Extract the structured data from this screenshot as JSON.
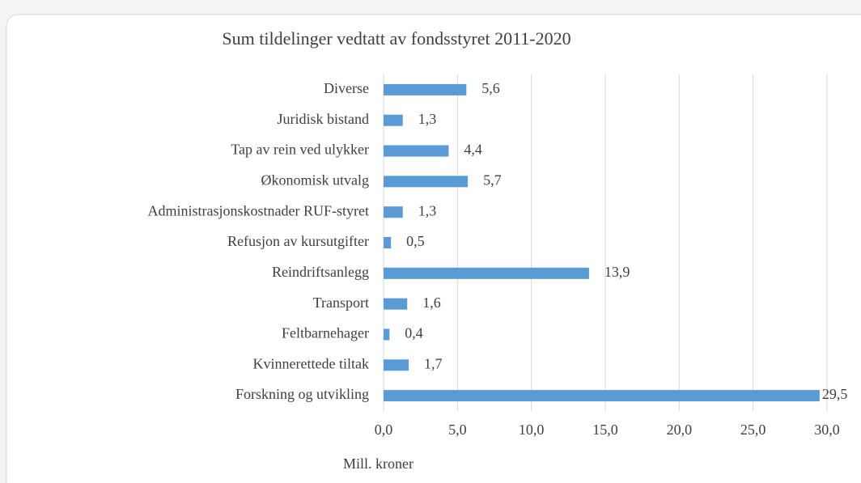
{
  "chart_data": {
    "type": "hbar",
    "title": "Sum tildelinger  vedtatt av fondsstyret 2011-2020",
    "x_label": "Mill. kroner",
    "categories": [
      "Diverse",
      "Juridisk bistand",
      "Tap av rein ved ulykker",
      "Økonomisk utvalg",
      "Administrasjonskostnader RUF-styret",
      "Refusjon av kursutgifter",
      "Reindriftsanlegg",
      "Transport",
      "Feltbarnehager",
      "Kvinnerettede tiltak",
      "Forskning og utvikling"
    ],
    "values": [
      5.6,
      1.3,
      4.4,
      5.7,
      1.3,
      0.5,
      13.9,
      1.6,
      0.4,
      1.7,
      29.5
    ],
    "value_labels": [
      "5,6",
      "1,3",
      "4,4",
      "5,7",
      "1,3",
      "0,5",
      "13,9",
      "1,6",
      "0,4",
      "1,7",
      "29,5"
    ],
    "color": "#5b9bd5",
    "xlim": [
      0,
      30
    ],
    "xticks": [
      {
        "value": 0,
        "label": "0,0"
      },
      {
        "value": 5,
        "label": "5,0"
      },
      {
        "value": 10,
        "label": "10,0"
      },
      {
        "value": 15,
        "label": "15,0"
      },
      {
        "value": 20,
        "label": "20,0"
      },
      {
        "value": 25,
        "label": "25,0"
      },
      {
        "value": 30,
        "label": "30,0"
      }
    ],
    "grid": true
  }
}
